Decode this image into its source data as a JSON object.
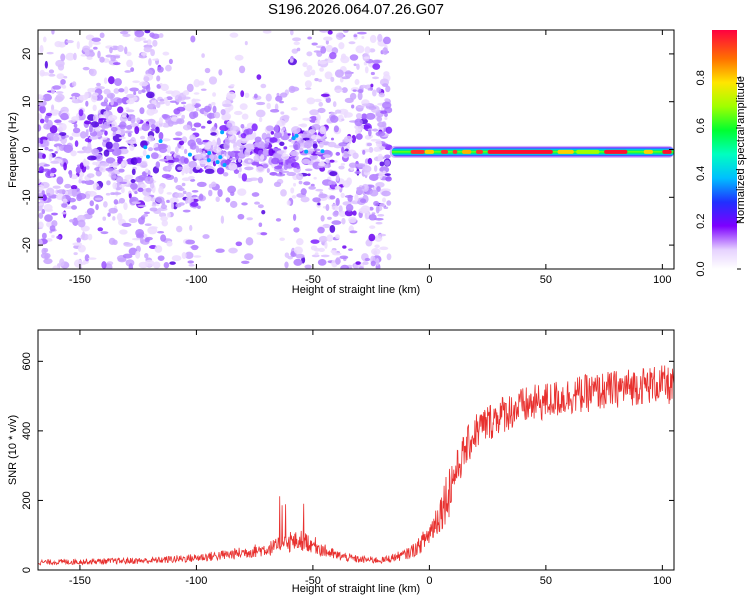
{
  "title": "S196.2026.064.07.26.G07",
  "chart_data": [
    {
      "type": "heatmap",
      "xlabel": "Height of straight line (km)",
      "ylabel": "Frequency (Hz)",
      "xlim": [
        -168,
        105
      ],
      "ylim": [
        -25,
        25
      ],
      "xticks": [
        -150,
        -100,
        -50,
        0,
        50,
        100
      ],
      "yticks": [
        -20,
        -10,
        0,
        10,
        20
      ],
      "colorbar": {
        "label": "Normalized spectral amplitude",
        "range": [
          0.0,
          1.0
        ],
        "ticks": [
          "0.0",
          "0.2",
          "0.4",
          "0.6",
          "0.8"
        ]
      },
      "description_values": {
        "diffuse_noise_region_km": [
          -168,
          -17
        ],
        "concentrated_band_region_km": [
          -17,
          105
        ],
        "band_center_hz": -0.5,
        "band_peak_amplitude": 0.95
      }
    },
    {
      "type": "line",
      "xlabel": "Height of straight line (km)",
      "ylabel": "SNR (10 * v/v)",
      "xlim": [
        -168,
        105
      ],
      "ylim": [
        0,
        690
      ],
      "xticks": [
        -150,
        -100,
        -50,
        0,
        50,
        100
      ],
      "yticks": [
        0,
        200,
        400,
        600
      ],
      "series": [
        {
          "name": "SNR",
          "color": "#e8312f",
          "x": [
            -168,
            -150,
            -120,
            -100,
            -85,
            -70,
            -60,
            -55,
            -50,
            -45,
            -40,
            -30,
            -20,
            -10,
            -5,
            0,
            5,
            10,
            15,
            20,
            30,
            40,
            50,
            60,
            70,
            80,
            90,
            100,
            105
          ],
          "y": [
            22,
            24,
            27,
            35,
            45,
            60,
            78,
            85,
            75,
            55,
            42,
            30,
            28,
            45,
            65,
            105,
            170,
            260,
            340,
            400,
            445,
            470,
            485,
            500,
            510,
            520,
            530,
            535,
            525
          ]
        }
      ]
    }
  ]
}
